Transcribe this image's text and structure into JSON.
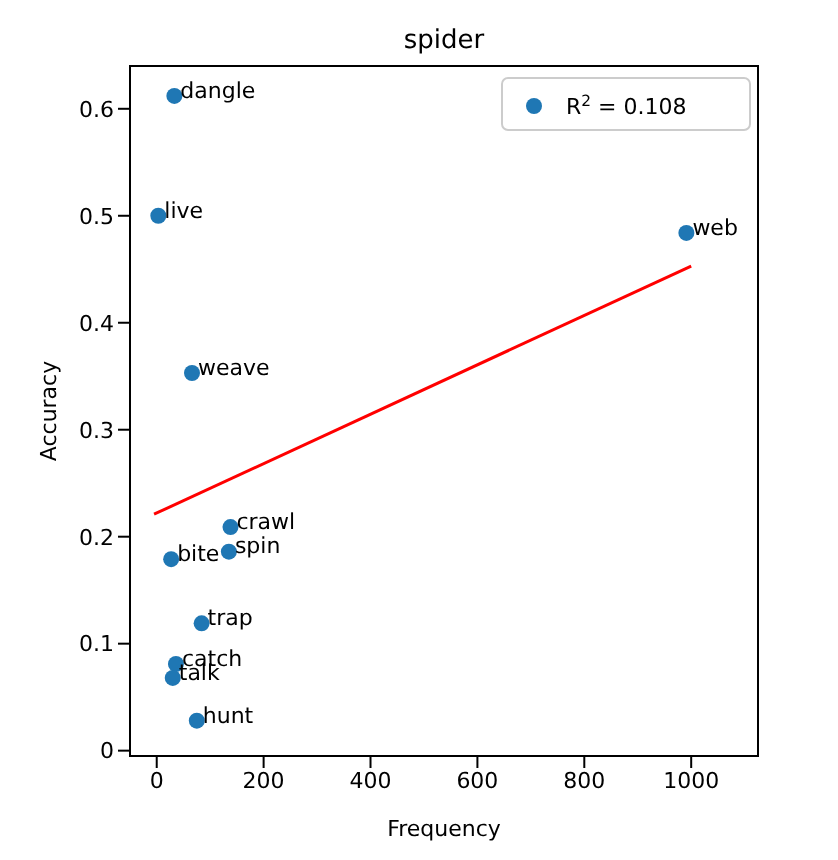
{
  "chart_data": {
    "type": "scatter",
    "title": "spider",
    "xlabel": "Frequency",
    "ylabel": "Accuracy",
    "series": [
      {
        "name": "$^{}$R$^{2}$ = 0.108",
        "type": "scatter",
        "marker": "circle",
        "color": "#1f77b4",
        "x": [
          33,
          3,
          66,
          991,
          138,
          135,
          27,
          84,
          36,
          30,
          75
        ],
        "values": [
          0.612,
          0.5,
          0.353,
          0.484,
          0.209,
          0.186,
          0.179,
          0.119,
          0.081,
          0.068,
          0.028
        ]
      },
      {
        "type": "line",
        "color": "#ff0000",
        "x": [
          -5,
          1000
        ],
        "values": [
          0.221,
          0.453
        ]
      }
    ],
    "annotations": [
      {
        "text": "dangle",
        "x": 33,
        "y": 0.612
      },
      {
        "text": "live",
        "x": 3,
        "y": 0.5
      },
      {
        "text": "weave",
        "x": 66,
        "y": 0.353
      },
      {
        "text": "web",
        "x": 991,
        "y": 0.484
      },
      {
        "text": "crawl",
        "x": 138,
        "y": 0.209
      },
      {
        "text": "spin",
        "x": 135,
        "y": 0.186
      },
      {
        "text": "bite",
        "x": 27,
        "y": 0.179
      },
      {
        "text": "trap",
        "x": 84,
        "y": 0.119
      },
      {
        "text": "catch",
        "x": 36,
        "y": 0.081
      },
      {
        "text": "talk",
        "x": 30,
        "y": 0.068
      },
      {
        "text": "hunt",
        "x": 75,
        "y": 0.028
      }
    ],
    "xlim": [
      -50,
      1125
    ],
    "ylim": [
      -0.005,
      0.64
    ],
    "xticks": [
      0,
      200,
      400,
      600,
      800,
      1000
    ],
    "yticks": [
      0,
      0.1,
      0.2,
      0.3,
      0.4,
      0.5,
      0.6
    ],
    "grid": false,
    "legend": "top right"
  }
}
